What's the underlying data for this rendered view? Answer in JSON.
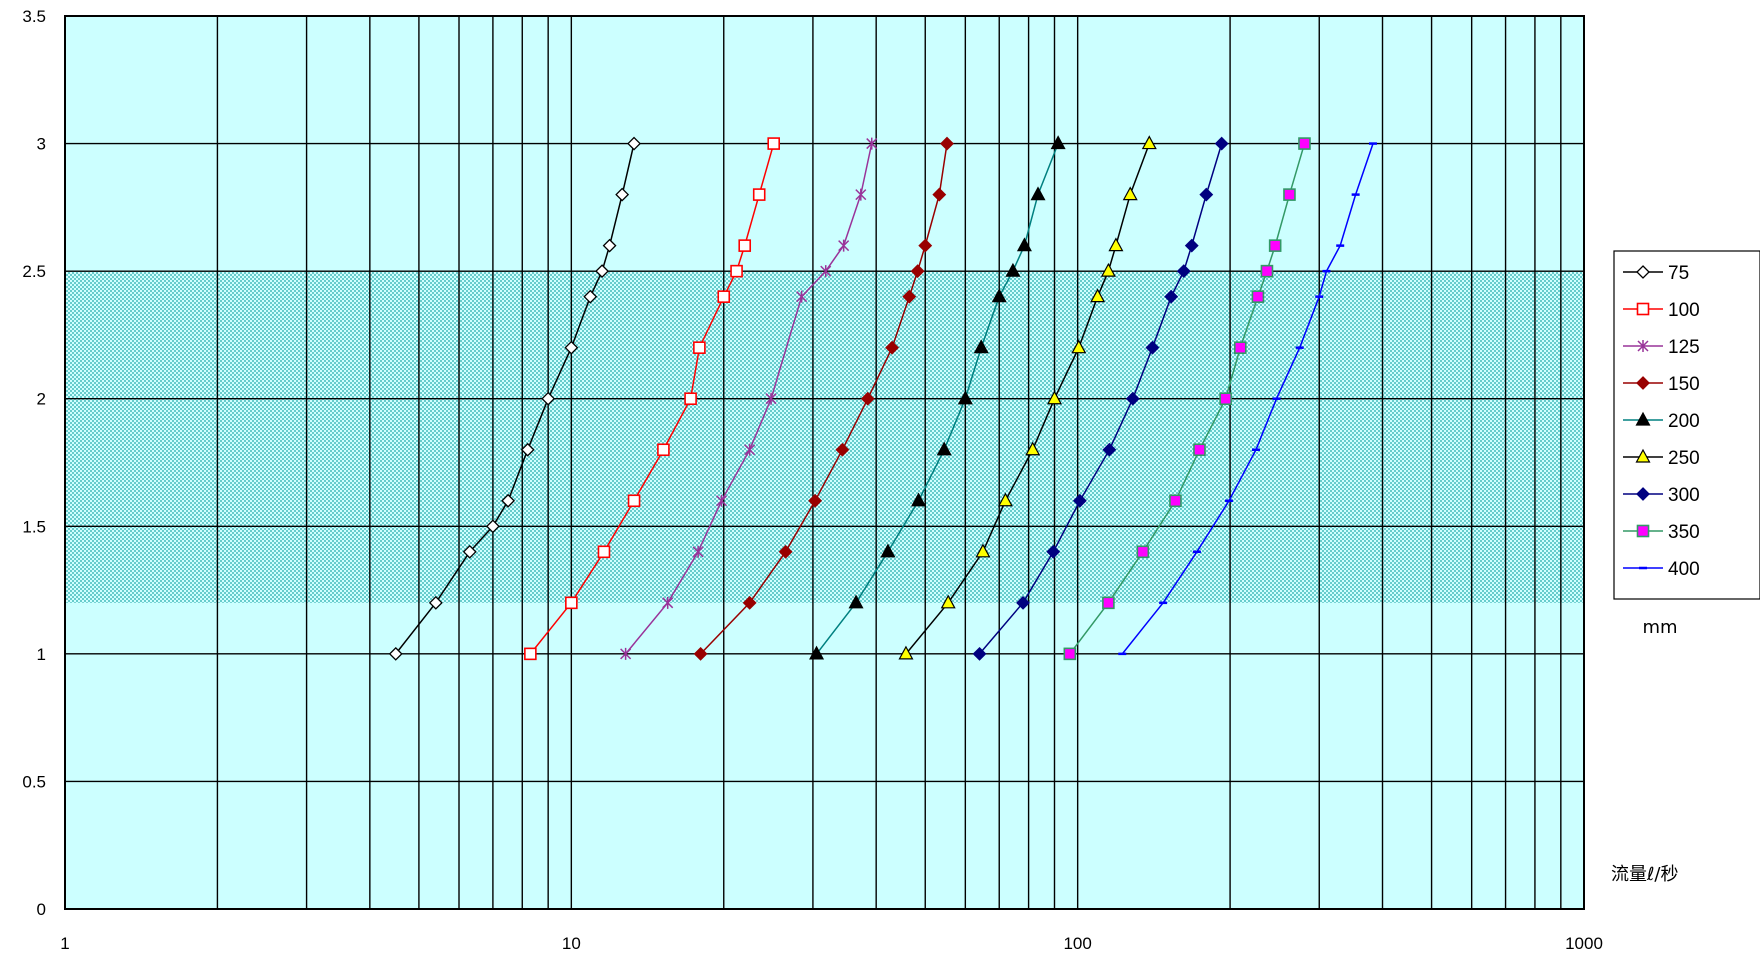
{
  "chart_data": {
    "type": "line",
    "x_scale": "log",
    "xlim": [
      1,
      1000
    ],
    "ylim": [
      0,
      3.5
    ],
    "x_tick_labels": [
      "1",
      "10",
      "100",
      "1000"
    ],
    "y_tick_labels": [
      "0",
      "0.5",
      "1",
      "1.5",
      "2",
      "2.5",
      "3",
      "3.5"
    ],
    "x_unit_label": "流量ℓ/秒",
    "legend_unit_label": "mm",
    "grid": true,
    "legend_position": "right",
    "plot_background": "#ccffff",
    "band": {
      "y_from": 1.2,
      "y_to": 2.5,
      "color": "#66cccc"
    },
    "series": [
      {
        "name": "75",
        "color": "#000000",
        "marker": "diamond",
        "fill": "#ffffff",
        "x": [
          4.5,
          5.4,
          6.3,
          7.0,
          7.5,
          8.2,
          9.0,
          10.0,
          10.9,
          11.5,
          11.9,
          12.6,
          13.3
        ],
        "y": [
          1.0,
          1.2,
          1.4,
          1.5,
          1.6,
          1.8,
          2.0,
          2.2,
          2.4,
          2.5,
          2.6,
          2.8,
          3.0
        ]
      },
      {
        "name": "100",
        "color": "#ff0000",
        "marker": "square",
        "fill": "#ffffff",
        "x": [
          8.3,
          10.0,
          11.6,
          13.3,
          15.2,
          17.2,
          17.9,
          20.0,
          21.2,
          22.0,
          23.5,
          25.1
        ],
        "y": [
          1.0,
          1.2,
          1.4,
          1.6,
          1.8,
          2.0,
          2.2,
          2.4,
          2.5,
          2.6,
          2.8,
          3.0
        ]
      },
      {
        "name": "125",
        "color": "#993399",
        "marker": "star",
        "fill": "#993399",
        "x": [
          12.8,
          15.5,
          17.8,
          19.8,
          22.5,
          24.8,
          28.5,
          31.8,
          34.5,
          37.3,
          39.2
        ],
        "y": [
          1.0,
          1.2,
          1.4,
          1.6,
          1.8,
          2.0,
          2.4,
          2.5,
          2.6,
          2.8,
          3.0
        ]
      },
      {
        "name": "150",
        "color": "#990000",
        "marker": "diamond",
        "fill": "#990000",
        "x": [
          18.0,
          22.5,
          26.5,
          30.3,
          34.3,
          38.5,
          43.0,
          46.5,
          48.3,
          50.0,
          53.3,
          55.2
        ],
        "y": [
          1.0,
          1.2,
          1.4,
          1.6,
          1.8,
          2.0,
          2.2,
          2.4,
          2.5,
          2.6,
          2.8,
          3.0
        ]
      },
      {
        "name": "200",
        "color": "#008080",
        "marker": "triangle",
        "fill": "#000000",
        "x": [
          30.5,
          36.5,
          42.2,
          48.5,
          54.5,
          60.0,
          64.5,
          70.0,
          74.5,
          78.5,
          83.5,
          91.5
        ],
        "y": [
          1.0,
          1.2,
          1.4,
          1.6,
          1.8,
          2.0,
          2.2,
          2.4,
          2.5,
          2.6,
          2.8,
          3.0
        ]
      },
      {
        "name": "250",
        "color": "#000000",
        "marker": "triangle",
        "fill": "#ffff00",
        "x": [
          45.8,
          55.5,
          65.0,
          72.0,
          81.5,
          90.0,
          100.5,
          109.5,
          115.0,
          119.0,
          127.0,
          138.5
        ],
        "y": [
          1.0,
          1.2,
          1.4,
          1.6,
          1.8,
          2.0,
          2.2,
          2.4,
          2.5,
          2.6,
          2.8,
          3.0
        ]
      },
      {
        "name": "300",
        "color": "#000080",
        "marker": "diamond",
        "fill": "#000080",
        "x": [
          64.0,
          78.0,
          89.5,
          101.0,
          115.5,
          128.5,
          140.5,
          153.0,
          162.0,
          168.0,
          179.5,
          192.5
        ],
        "y": [
          1.0,
          1.2,
          1.4,
          1.6,
          1.8,
          2.0,
          2.2,
          2.4,
          2.5,
          2.6,
          2.8,
          3.0
        ]
      },
      {
        "name": "350",
        "color": "#339966",
        "marker": "square",
        "fill": "#ff00ff",
        "x": [
          96.5,
          115.0,
          134.5,
          156.0,
          174.0,
          196.0,
          209.5,
          227.0,
          236.5,
          245.5,
          262.0,
          280.5
        ],
        "y": [
          1.0,
          1.2,
          1.4,
          1.6,
          1.8,
          2.0,
          2.2,
          2.4,
          2.5,
          2.6,
          2.8,
          3.0
        ]
      },
      {
        "name": "400",
        "color": "#0000ff",
        "marker": "dash",
        "fill": "#0000ff",
        "x": [
          122.5,
          147.5,
          172.0,
          199.0,
          225.0,
          247.0,
          274.5,
          300.0,
          310.0,
          330.0,
          354.0,
          383.0
        ],
        "y": [
          1.0,
          1.2,
          1.4,
          1.6,
          1.8,
          2.0,
          2.2,
          2.4,
          2.5,
          2.6,
          2.8,
          3.0
        ]
      }
    ]
  }
}
